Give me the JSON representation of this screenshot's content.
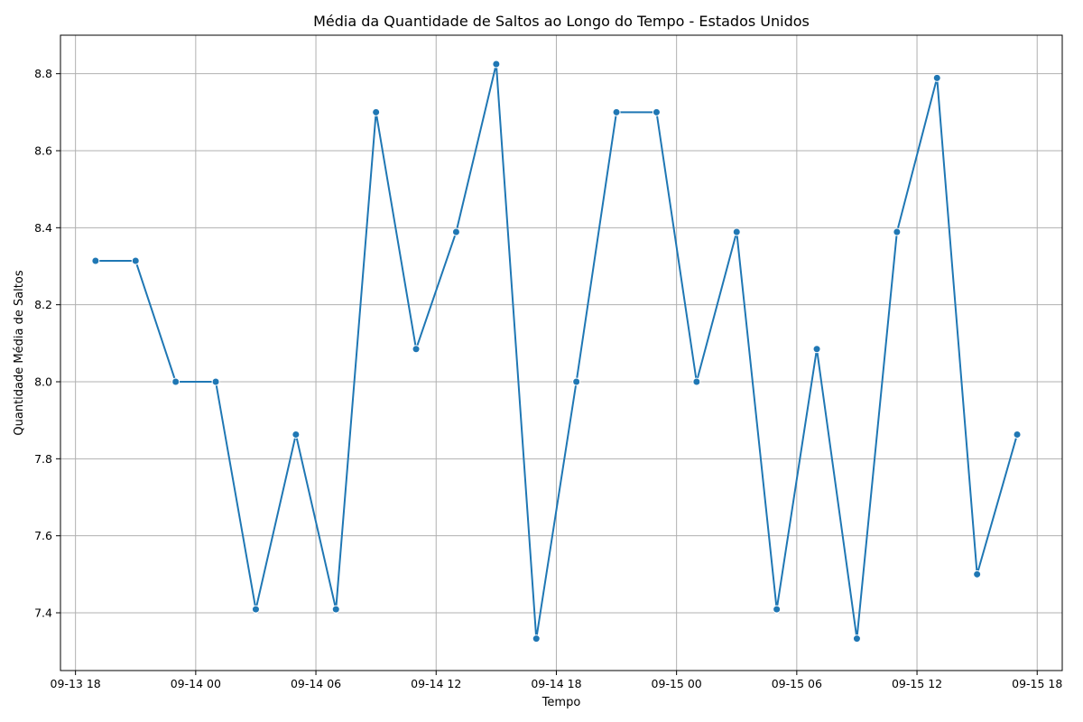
{
  "chart_data": {
    "type": "line",
    "title": "Média da Quantidade de Saltos ao Longo do Tempo - Estados Unidos",
    "xlabel": "Tempo",
    "ylabel": "Quantidade Média de Saltos",
    "x": [
      "09-13 19:00",
      "09-13 21:00",
      "09-13 23:00",
      "09-14 01:00",
      "09-14 03:00",
      "09-14 05:00",
      "09-14 07:00",
      "09-14 09:00",
      "09-14 11:00",
      "09-14 13:00",
      "09-14 15:00",
      "09-14 17:00",
      "09-14 19:00",
      "09-14 21:00",
      "09-14 23:00",
      "09-15 01:00",
      "09-15 03:00",
      "09-15 05:00",
      "09-15 07:00",
      "09-15 09:00",
      "09-15 11:00",
      "09-15 13:00",
      "09-15 15:00",
      "09-15 17:00"
    ],
    "values": [
      8.314,
      8.314,
      8.0,
      8.0,
      7.409,
      7.863,
      7.409,
      8.7,
      8.085,
      8.389,
      8.825,
      7.333,
      8.0,
      8.7,
      8.7,
      8.0,
      8.389,
      7.409,
      8.085,
      7.333,
      8.389,
      8.789,
      7.5,
      7.863
    ],
    "xlim": [
      "09-13 18:00",
      "09-15 18:00"
    ],
    "ylim": [
      7.25,
      8.9
    ],
    "x_ticks": [
      "09-13 18",
      "09-14 00",
      "09-14 06",
      "09-14 12",
      "09-14 18",
      "09-15 00",
      "09-15 06",
      "09-15 12",
      "09-15 18"
    ],
    "y_ticks": [
      "7.4",
      "7.6",
      "7.8",
      "8.0",
      "8.2",
      "8.4",
      "8.6",
      "8.8"
    ],
    "grid": true,
    "color": "#1f77b4"
  }
}
